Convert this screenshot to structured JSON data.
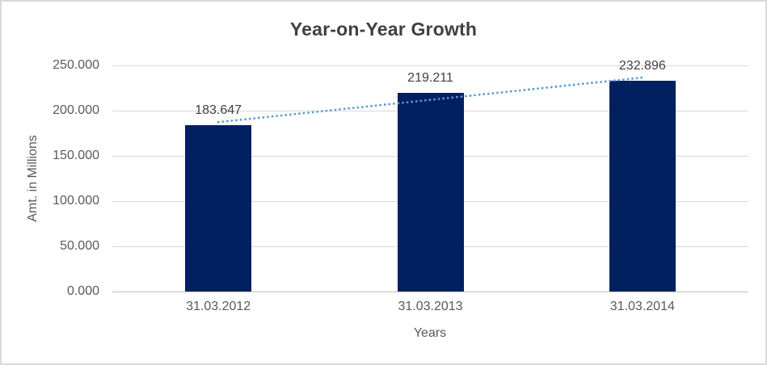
{
  "chart_data": {
    "type": "bar",
    "title": "Year-on-Year Growth",
    "xlabel": "Years",
    "ylabel": "Amt. in Millions",
    "categories": [
      "31.03.2012",
      "31.03.2013",
      "31.03.2014"
    ],
    "values": [
      183.647,
      219.211,
      232.896
    ],
    "data_labels": [
      "183.647",
      "219.211",
      "232.896"
    ],
    "ylim": [
      0,
      250
    ],
    "yticks": [
      {
        "value": 0,
        "label": "0.000"
      },
      {
        "value": 50,
        "label": "50.000"
      },
      {
        "value": 100,
        "label": "100.000"
      },
      {
        "value": 150,
        "label": "150.000"
      },
      {
        "value": 200,
        "label": "200.000"
      },
      {
        "value": 250,
        "label": "250.000"
      },
      {
        "value": 250,
        "label": "250.000"
      }
    ],
    "grid": true,
    "legend": false,
    "trendline": {
      "type": "linear",
      "style": "dotted"
    }
  },
  "colors": {
    "bar": "#002060",
    "trendline": "#5B9BD5",
    "gridline": "#D9D9D9",
    "axis_line": "#BFBFBF",
    "tick_text": "#595959",
    "label_text": "#404040",
    "title_text": "#404040",
    "frame_border": "#D9D9D9",
    "background": "#FFFFFF"
  }
}
